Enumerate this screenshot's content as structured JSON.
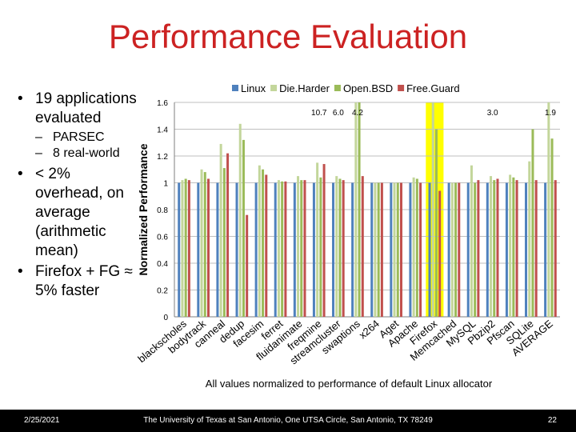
{
  "slide": {
    "title": "Performance Evaluation",
    "bullets": {
      "b1": "19 applications evaluated",
      "b1_sub1": "PARSEC",
      "b1_sub2": "8 real-world",
      "b2": "< 2% overhead, on average (arithmetic mean)",
      "b3": "Firefox + FG ≈ 5% faster"
    },
    "footer": {
      "date": "2/25/2021",
      "university": "The University of Texas at San Antonio, One UTSA Circle, San Antonio, TX 78249",
      "page": "22"
    },
    "caption": "All values normalized to performance of default Linux allocator"
  },
  "chart_data": {
    "type": "bar",
    "ylabel": "Normalized Performance",
    "ylim": [
      0,
      1.6
    ],
    "yticks": [
      "0",
      "0.2",
      "0.4",
      "0.6",
      "0.8",
      "1",
      "1.2",
      "1.4",
      "1.6"
    ],
    "highlight_category": "Firefox",
    "highlight_color": "#ffff00",
    "categories": [
      "blackscholes",
      "bodytrack",
      "canneal",
      "dedup",
      "facesim",
      "ferret",
      "fluidanimate",
      "freqmine",
      "streamcluster",
      "swaptions",
      "x264",
      "Aget",
      "Apache",
      "Firefox",
      "Memcached",
      "MySQL",
      "Pbzip2",
      "Pfscan",
      "SQLite",
      "AVERAGE"
    ],
    "series": [
      {
        "name": "Linux",
        "color": "#4f81bd",
        "values": [
          1,
          1,
          1,
          1,
          1,
          1,
          1,
          1,
          1,
          1,
          1,
          1,
          1,
          1,
          1,
          1,
          1,
          1,
          1,
          1
        ]
      },
      {
        "name": "Die.Harder",
        "color": "#c3d69b",
        "values": [
          1.02,
          1.1,
          1.29,
          1.44,
          1.13,
          1.02,
          1.05,
          1.15,
          1.05,
          1.6,
          1.0,
          1.0,
          1.04,
          1.6,
          1.0,
          1.13,
          1.05,
          1.06,
          1.16,
          1.6
        ]
      },
      {
        "name": "Open.BSD",
        "color": "#9bbb59",
        "values": [
          1.03,
          1.08,
          1.11,
          1.32,
          1.1,
          1.01,
          1.02,
          1.04,
          1.03,
          1.6,
          1.0,
          1.0,
          1.03,
          1.4,
          1.0,
          1.0,
          1.02,
          1.04,
          1.4,
          1.33
        ]
      },
      {
        "name": "Free.Guard",
        "color": "#c0504d",
        "values": [
          1.02,
          1.03,
          1.22,
          0.76,
          1.06,
          1.01,
          1.02,
          1.14,
          1.02,
          1.05,
          1.0,
          1.0,
          1.0,
          0.94,
          1.0,
          1.02,
          1.03,
          1.02,
          1.02,
          1.02
        ]
      }
    ],
    "annotations": [
      {
        "category": "freqmine",
        "text": "10.7"
      },
      {
        "category": "streamcluster",
        "text": "6.0"
      },
      {
        "category": "swaptions",
        "text": "4.2"
      },
      {
        "category": "Pbzip2",
        "text": "3.0"
      },
      {
        "category": "AVERAGE",
        "text": "1.9"
      }
    ]
  }
}
